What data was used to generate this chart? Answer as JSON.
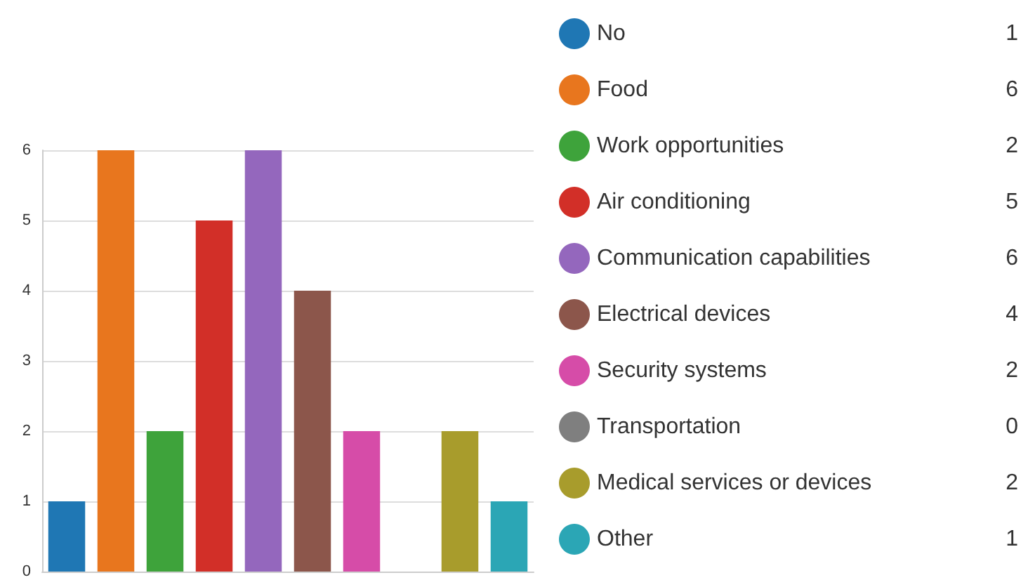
{
  "chart_data": {
    "type": "bar",
    "categories": [
      null,
      null,
      null,
      null,
      null,
      null,
      null,
      null,
      null,
      null
    ],
    "series": [
      {
        "name": "No",
        "color": "#1f77b4",
        "values": [
          1,
          null,
          null,
          null,
          null,
          null,
          null,
          null,
          null,
          null
        ]
      },
      {
        "name": "Food",
        "color": "#e8761e",
        "values": [
          null,
          6,
          null,
          null,
          null,
          null,
          null,
          null,
          null,
          null
        ]
      },
      {
        "name": "Work opportunities",
        "color": "#3ea33b",
        "values": [
          null,
          null,
          2,
          null,
          null,
          null,
          null,
          null,
          null,
          null
        ]
      },
      {
        "name": "Air conditioning",
        "color": "#d22f28",
        "values": [
          null,
          null,
          null,
          5,
          null,
          null,
          null,
          null,
          null,
          null
        ]
      },
      {
        "name": "Communication capabilities",
        "color": "#9467bd",
        "values": [
          null,
          null,
          null,
          null,
          6,
          null,
          null,
          null,
          null,
          null
        ]
      },
      {
        "name": "Electrical devices",
        "color": "#8c564b",
        "values": [
          null,
          null,
          null,
          null,
          null,
          4,
          null,
          null,
          null,
          null
        ]
      },
      {
        "name": "Security systems",
        "color": "#d64ca8",
        "values": [
          null,
          null,
          null,
          null,
          null,
          null,
          2,
          null,
          null,
          null
        ]
      },
      {
        "name": "Transportation",
        "color": "#7f7f7f",
        "values": [
          null,
          null,
          null,
          null,
          null,
          null,
          null,
          0,
          null,
          null
        ]
      },
      {
        "name": "Medical services or devices",
        "color": "#a89c2c",
        "values": [
          null,
          null,
          null,
          null,
          null,
          null,
          null,
          null,
          2,
          null
        ]
      },
      {
        "name": "Other",
        "color": "#2ba6b5",
        "values": [
          null,
          null,
          null,
          null,
          null,
          null,
          null,
          null,
          null,
          1
        ]
      }
    ],
    "stacked": true,
    "annotations": [
      "1",
      "6",
      "2",
      "5",
      "6",
      "4",
      "2",
      "0",
      "2",
      "1"
    ],
    "ylim": [
      0,
      6
    ],
    "yticks": [
      0,
      1,
      2,
      3,
      4,
      5,
      6
    ],
    "grid": "y",
    "legend": "right",
    "tick_labels": "y"
  }
}
